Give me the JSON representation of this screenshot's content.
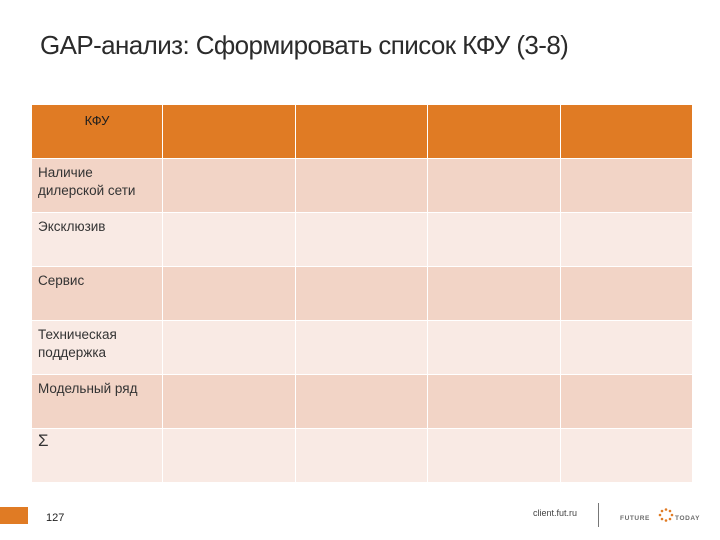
{
  "slide": {
    "title": "GAP-анализ: Сформировать список КФУ (3-8)"
  },
  "table": {
    "header": "КФУ",
    "rows": [
      "Наличие дилерской сети",
      "Эксклюзив",
      "Сервис",
      "Техническая поддержка",
      "Модельный ряд",
      "Σ"
    ]
  },
  "footer": {
    "page_number": "127",
    "site": "client.fut.ru",
    "logo_text": "FUTURE TODAY"
  },
  "colors": {
    "accent": "#e07b24",
    "row_dark": "#f2d4c6",
    "row_light": "#f9eae4"
  }
}
